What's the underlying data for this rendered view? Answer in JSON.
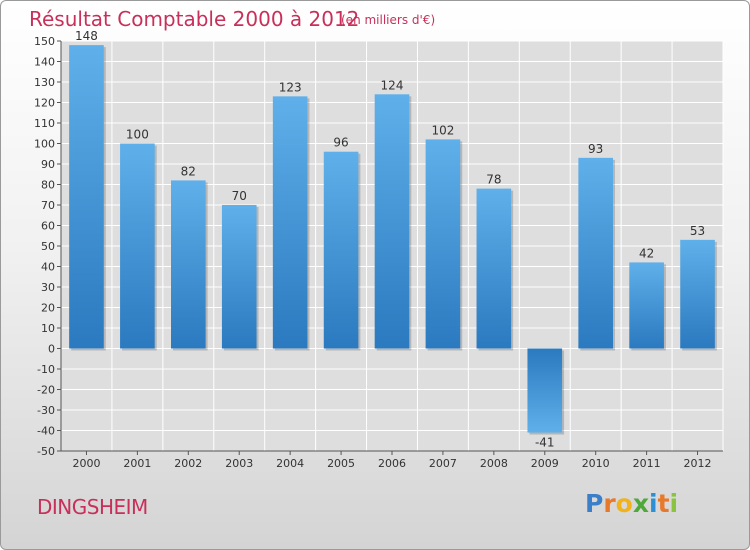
{
  "title": "Résultat Comptable 2000 à 2012",
  "subtitle": "(en milliers d'€)",
  "commune": "DINGSHEIM",
  "logo": {
    "letters": [
      "P",
      "r",
      "o",
      "x",
      "i",
      "t",
      "i"
    ],
    "colors": [
      "#3a7fc8",
      "#e8792a",
      "#f2b21b",
      "#4ea83a",
      "#2d8fd4",
      "#e8792a",
      "#8ac43f"
    ]
  },
  "colors": {
    "title": "#c8305a",
    "bar_light": "#5fb0ea",
    "bar_dark": "#2b79bf",
    "grid": "#ffffff"
  },
  "chart_data": {
    "type": "bar",
    "categories": [
      "2000",
      "2001",
      "2002",
      "2003",
      "2004",
      "2005",
      "2006",
      "2007",
      "2008",
      "2009",
      "2010",
      "2011",
      "2012"
    ],
    "values": [
      148,
      100,
      82,
      70,
      123,
      96,
      124,
      102,
      78,
      -41,
      93,
      42,
      53
    ],
    "ylim": [
      -50,
      150
    ],
    "ystep": 10,
    "grid": true,
    "data_labels": true
  }
}
